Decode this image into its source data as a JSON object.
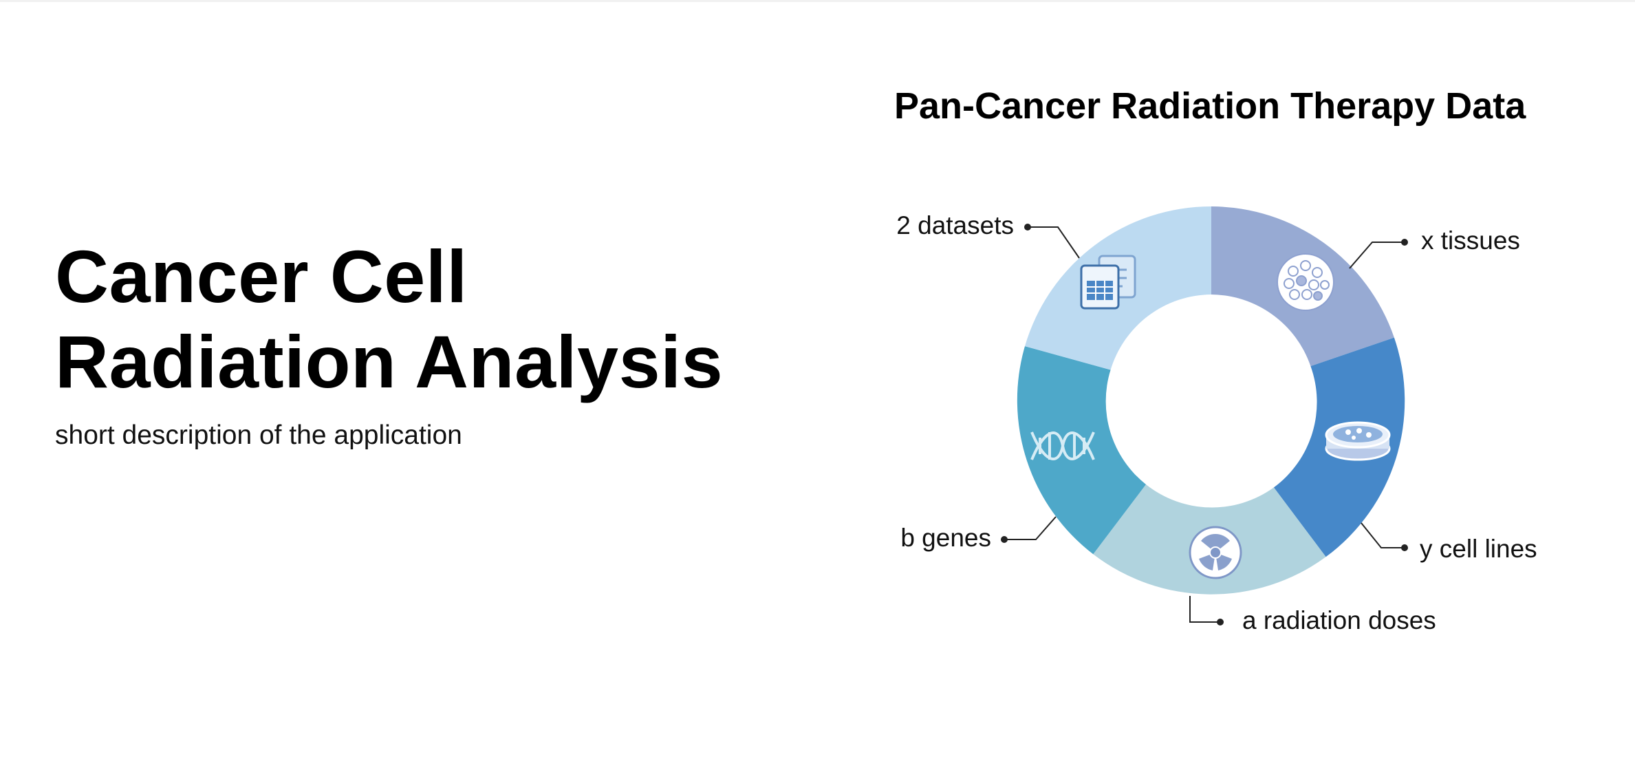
{
  "hero": {
    "title_line1": "Cancer Cell",
    "title_line2": "Radiation Analysis",
    "description": "short description of the application"
  },
  "graphic": {
    "title": "Pan-Cancer Radiation Therapy Data",
    "segments": [
      {
        "label": "x tissues",
        "icon": "tissue-icon",
        "color": "#97aad3"
      },
      {
        "label": "y cell lines",
        "icon": "petri-dish-icon",
        "color": "#4688c9"
      },
      {
        "label": "a radiation doses",
        "icon": "radiation-icon",
        "color": "#b0d3de"
      },
      {
        "label": "b genes",
        "icon": "dna-icon",
        "color": "#4ea8c9"
      },
      {
        "label": "2 datasets",
        "icon": "datasets-icon",
        "color": "#bcdaf1"
      }
    ]
  }
}
